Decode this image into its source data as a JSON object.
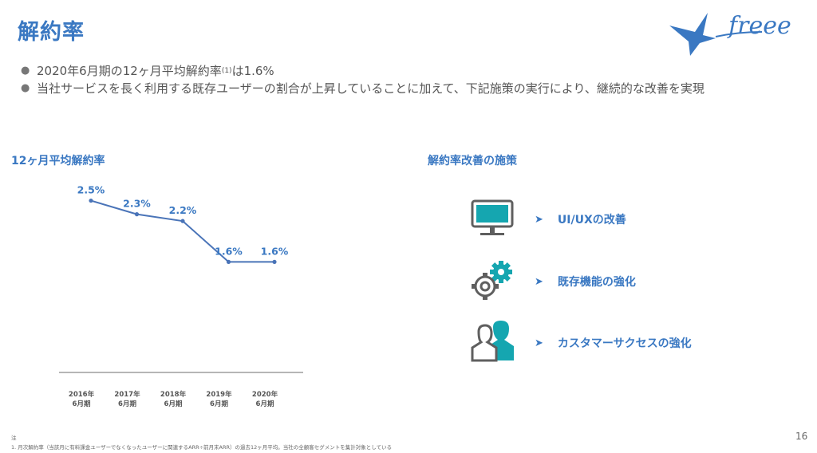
{
  "slide": {
    "title": "解約率",
    "page_number": "16",
    "logo_text": "freee"
  },
  "bullets": [
    {
      "text": "2020年6月期の12ヶ月平均解約率",
      "sup": "(1)",
      "tail": "は1.6%"
    },
    {
      "text": "当社サービスを長く利用する既存ユーザーの割合が上昇していることに加えて、下記施策の実行により、継続的な改善を実現",
      "sup": "",
      "tail": ""
    }
  ],
  "chart_section": {
    "heading": "12ヶ月平均解約率"
  },
  "measures_section": {
    "heading": "解約率改善の施策",
    "items": [
      {
        "label": "UI/UXの改善",
        "icon": "monitor-icon"
      },
      {
        "label": "既存機能の強化",
        "icon": "gears-icon"
      },
      {
        "label": "カスタマーサクセスの強化",
        "icon": "people-icon"
      }
    ]
  },
  "chart_data": {
    "type": "line",
    "title": "12ヶ月平均解約率",
    "categories": [
      [
        "2016年",
        "6月期"
      ],
      [
        "2017年",
        "6月期"
      ],
      [
        "2018年",
        "6月期"
      ],
      [
        "2019年",
        "6月期"
      ],
      [
        "2020年",
        "6月期"
      ]
    ],
    "values": [
      2.5,
      2.3,
      2.2,
      1.6,
      1.6
    ],
    "data_labels": [
      "2.5%",
      "2.3%",
      "2.2%",
      "1.6%",
      "1.6%"
    ],
    "ylim": [
      0,
      2.6
    ],
    "grid": false,
    "line_color": "#4a74b8"
  },
  "footnote": {
    "label": "注",
    "text": "1.  月次解約率（当該月に有料課金ユーザーでなくなったユーザーに関連するARR÷前月末ARR）の過去12ヶ月平均。当社の全顧客セグメントを集計対象としている"
  },
  "colors": {
    "accent": "#3a78c2",
    "teal": "#15a6b0",
    "gray_icon": "#5f5f5f"
  }
}
